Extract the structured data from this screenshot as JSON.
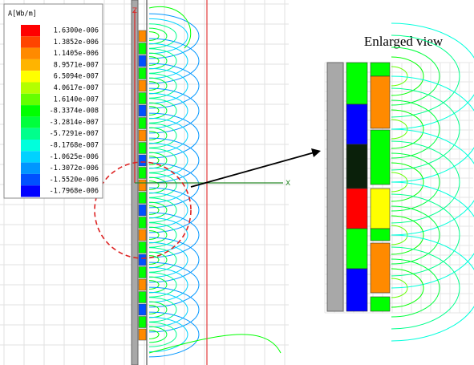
{
  "legend": {
    "title": "A[Wb/m]",
    "entries": [
      {
        "label": "1.6300e-006",
        "color": "#ff0000"
      },
      {
        "label": "1.3852e-006",
        "color": "#ff4400"
      },
      {
        "label": "1.1405e-006",
        "color": "#ff8a00"
      },
      {
        "label": "8.9571e-007",
        "color": "#ffb400"
      },
      {
        "label": "6.5094e-007",
        "color": "#ffff00"
      },
      {
        "label": "4.0617e-007",
        "color": "#b4ff00"
      },
      {
        "label": "1.6140e-007",
        "color": "#64ff00"
      },
      {
        "label": "-8.3374e-008",
        "color": "#00ff00"
      },
      {
        "label": "-3.2814e-007",
        "color": "#00ff3c"
      },
      {
        "label": "-5.7291e-007",
        "color": "#00ff8c"
      },
      {
        "label": "-8.1768e-007",
        "color": "#00ffdc"
      },
      {
        "label": "-1.0625e-006",
        "color": "#00d2ff"
      },
      {
        "label": "-1.3072e-006",
        "color": "#0096ff"
      },
      {
        "label": "-1.5520e-006",
        "color": "#0050ff"
      },
      {
        "label": "-1.7968e-006",
        "color": "#0000ff"
      }
    ]
  },
  "axes": {
    "z": "Z",
    "x": "X"
  },
  "enlarged_view": {
    "title": "Enlarged view"
  }
}
